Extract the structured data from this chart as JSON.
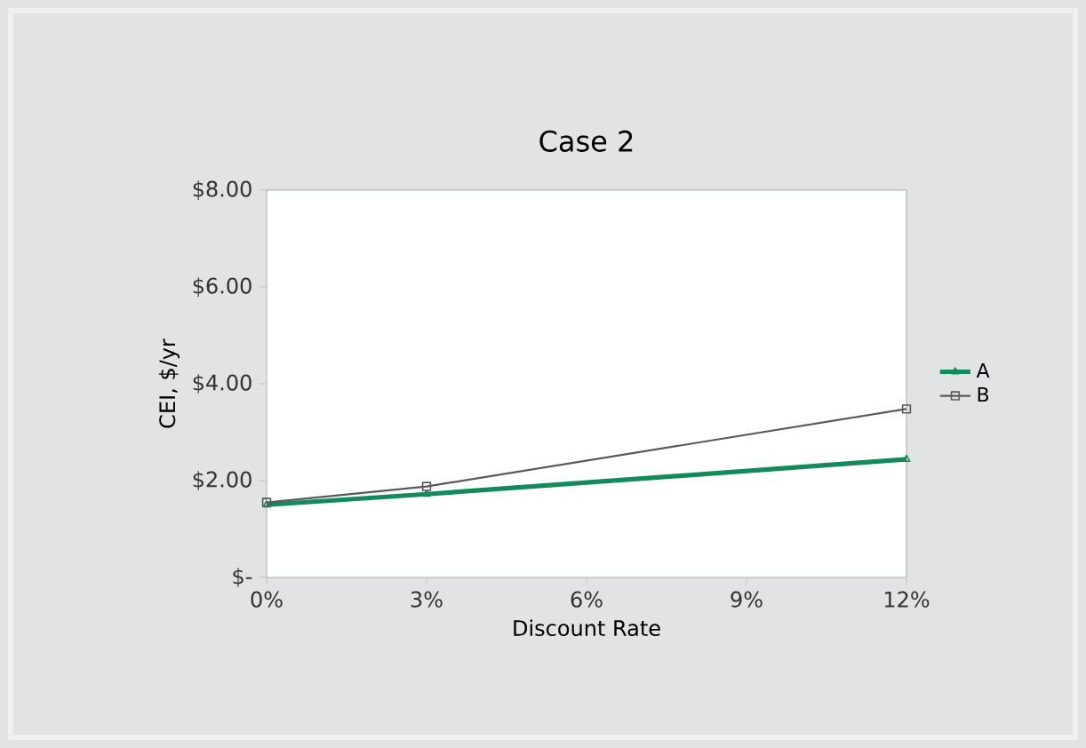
{
  "chart_data": {
    "type": "line",
    "title": "Case 2",
    "xlabel": "Discount Rate",
    "ylabel": "CEI, $/yr",
    "x": [
      0,
      3,
      12
    ],
    "series": [
      {
        "name": "A",
        "color": "#138a5a",
        "values": [
          1.5,
          1.72,
          2.44
        ],
        "marker": "triangle"
      },
      {
        "name": "B",
        "color": "#595959",
        "values": [
          1.55,
          1.88,
          3.48
        ],
        "marker": "square"
      }
    ],
    "xlim": [
      0,
      12
    ],
    "xticks": [
      {
        "value": 0,
        "label": "0%"
      },
      {
        "value": 3,
        "label": "3%"
      },
      {
        "value": 6,
        "label": "6%"
      },
      {
        "value": 9,
        "label": "9%"
      },
      {
        "value": 12,
        "label": "12%"
      }
    ],
    "ylim": [
      0,
      8
    ],
    "yticks": [
      {
        "value": 0,
        "label": "$-"
      },
      {
        "value": 2,
        "label": "$2.00"
      },
      {
        "value": 4,
        "label": "$4.00"
      },
      {
        "value": 6,
        "label": "$6.00"
      },
      {
        "value": 8,
        "label": "$8.00"
      }
    ],
    "legend": "right",
    "grid": false
  }
}
